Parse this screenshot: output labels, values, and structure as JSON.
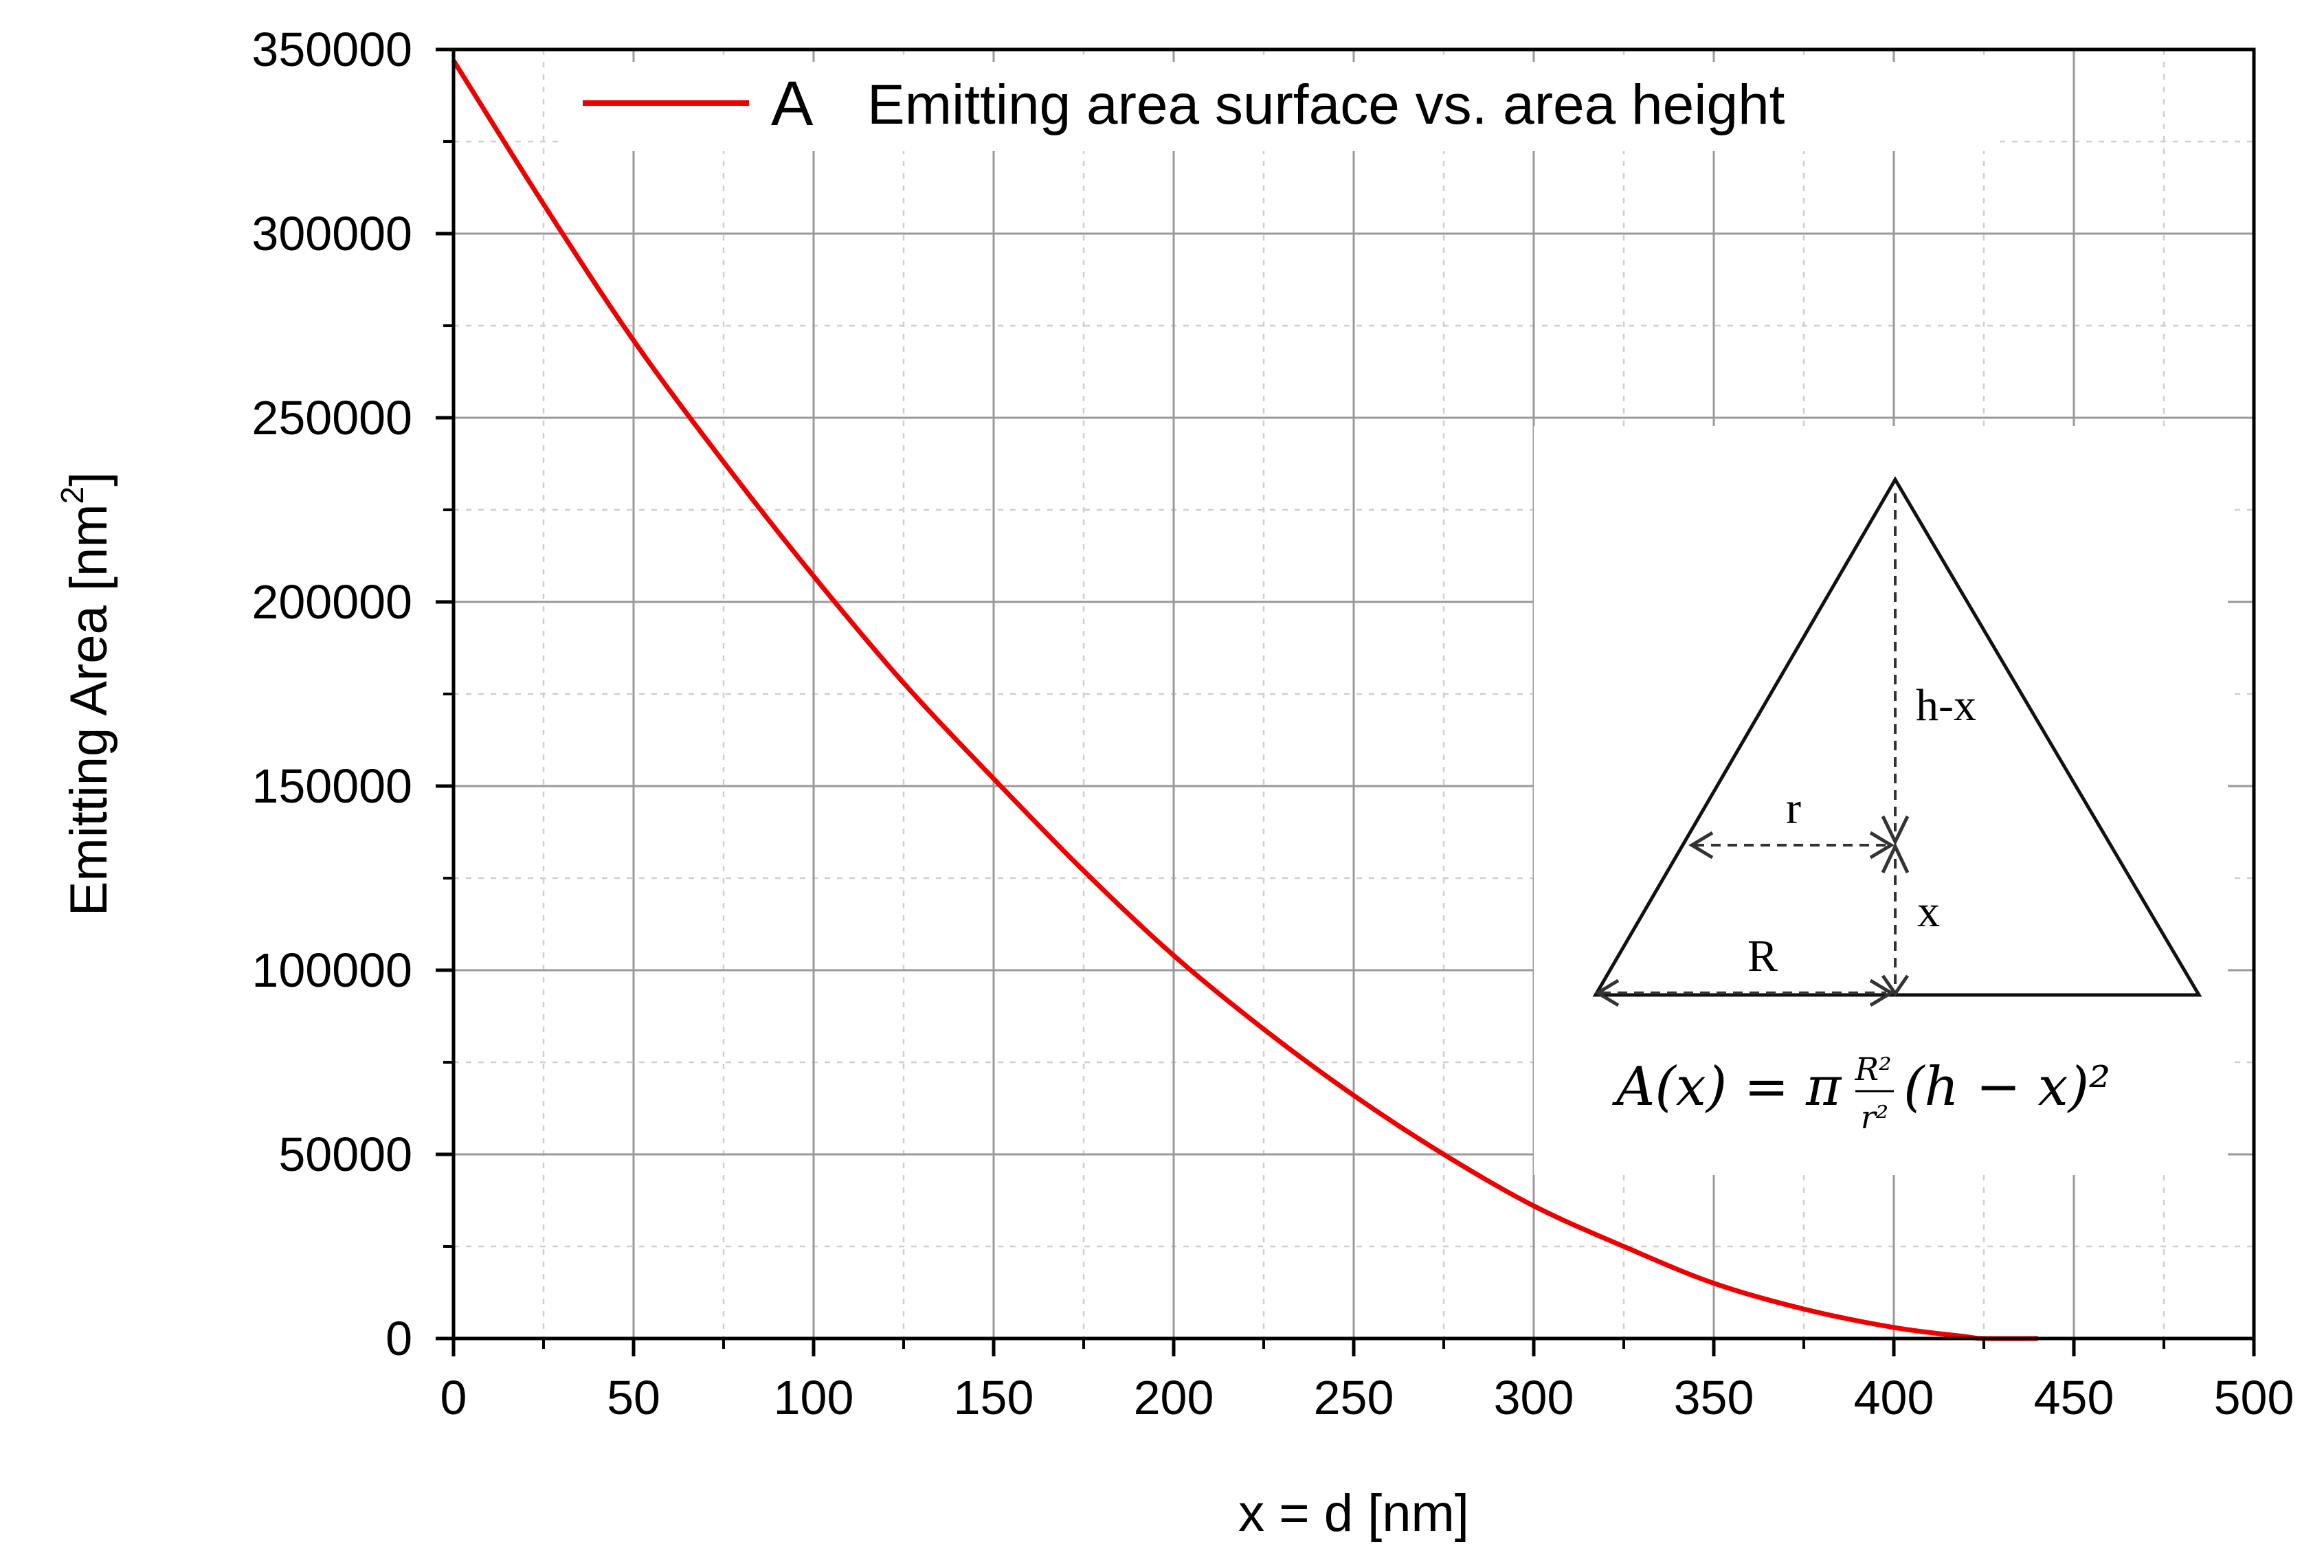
{
  "chart_data": {
    "type": "line",
    "title": "",
    "xlabel": "x = d [nm]",
    "ylabel": "Emitting Area [nm",
    "ylabel_sup": "2",
    "ylabel_end": "]",
    "xlim": [
      0,
      500
    ],
    "ylim": [
      0,
      350000
    ],
    "x_ticks": [
      0,
      50,
      100,
      150,
      200,
      250,
      300,
      350,
      400,
      450,
      500
    ],
    "x_tick_labels": [
      "0",
      "50",
      "100",
      "150",
      "200",
      "250",
      "300",
      "350",
      "400",
      "450",
      "500"
    ],
    "y_ticks": [
      0,
      50000,
      100000,
      150000,
      200000,
      250000,
      300000,
      350000
    ],
    "y_tick_labels": [
      "0",
      "50000",
      "100000",
      "150000",
      "200000",
      "250000",
      "300000",
      "350000"
    ],
    "grid": true,
    "legend": {
      "position": "top",
      "letter": "A",
      "label": "Emitting area surface vs. area height"
    },
    "series": [
      {
        "name": "Emitting area surface vs. area height",
        "color": "#ee0000",
        "x": [
          0,
          25,
          50,
          75,
          100,
          125,
          150,
          175,
          200,
          225,
          250,
          275,
          300,
          325,
          350,
          375,
          400,
          420,
          425,
          440
        ],
        "y": [
          347000,
          308000,
          271000,
          238000,
          207000,
          178000,
          152000,
          127000,
          104000,
          84000,
          66000,
          50000,
          36000,
          25000,
          15000,
          8000,
          3000,
          500,
          0,
          0
        ]
      }
    ],
    "inset": {
      "labels": {
        "h_minus_x": "h-x",
        "r": "r",
        "x": "x",
        "R": "R"
      },
      "formula": {
        "lhs": "A(x) = π",
        "num": "R²",
        "den": "r²",
        "rhs": "(h − x)²"
      }
    }
  }
}
